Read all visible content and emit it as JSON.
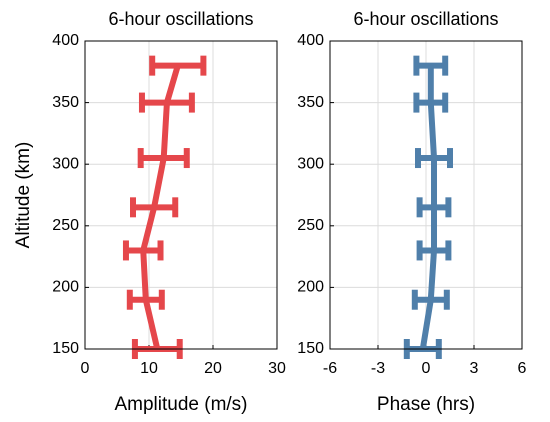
{
  "chart_data": [
    {
      "type": "errorbar",
      "title": "6-hour oscillations",
      "x_label": "Amplitude (m/s)",
      "y_label": "Altitude (km)",
      "y": [
        380,
        350,
        305,
        265,
        230,
        190,
        150
      ],
      "values": [
        14.5,
        12.8,
        12.3,
        10.8,
        9.1,
        9.5,
        11.3
      ],
      "errors": [
        4.0,
        3.9,
        3.6,
        3.3,
        2.7,
        2.5,
        3.5
      ],
      "color": "#e5474b",
      "xlim": [
        0,
        30
      ],
      "xticks": [
        0,
        10,
        20,
        30
      ],
      "ylim": [
        150,
        400
      ],
      "yticks": [
        150,
        200,
        250,
        300,
        350,
        400
      ],
      "grid": true
    },
    {
      "type": "errorbar",
      "title": "6-hour oscillations",
      "x_label": "Phase (hrs)",
      "y": [
        380,
        350,
        305,
        265,
        230,
        190,
        150
      ],
      "values": [
        0.3,
        0.3,
        0.5,
        0.5,
        0.5,
        0.3,
        -0.2
      ],
      "errors": [
        0.9,
        0.9,
        1.0,
        0.9,
        0.9,
        1.0,
        1.0
      ],
      "color": "#4f7faa",
      "xlim": [
        -6,
        6
      ],
      "xticks": [
        -6,
        -3,
        0,
        3,
        6
      ],
      "ylim": [
        150,
        400
      ],
      "yticks": [
        150,
        200,
        250,
        300,
        350,
        400
      ],
      "grid": true
    }
  ]
}
